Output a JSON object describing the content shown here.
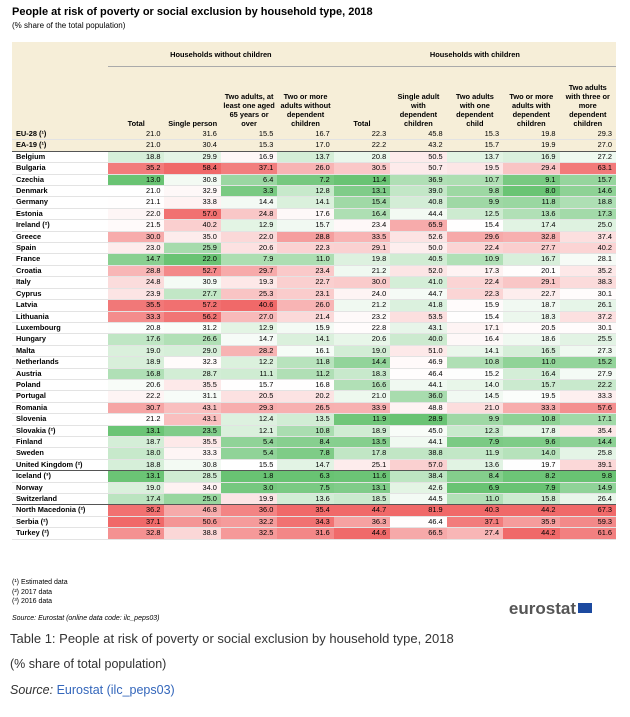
{
  "header": {
    "title": "People at risk of poverty or social exclusion by household type, 2018",
    "subtitle": "(% share of the total population)"
  },
  "table": {
    "groups": [
      "Households without children",
      "Households with children"
    ],
    "columns": [
      "Total",
      "Single person",
      "Two adults, at least one aged 65 years or over",
      "Two or more adults without dependent children",
      "Total",
      "Single adult with dependent children",
      "Two adults with one dependent child",
      "Two or more adults with dependent children",
      "Two adults with three or more dependent children"
    ],
    "rows": [
      {
        "label": "EU-28 (¹)",
        "values": [
          "21.0",
          "31.6",
          "15.5",
          "16.7",
          "22.3",
          "45.8",
          "15.3",
          "19.8",
          "29.3"
        ]
      },
      {
        "label": "EA-19 (¹)",
        "values": [
          "21.0",
          "30.4",
          "15.3",
          "17.0",
          "22.2",
          "43.2",
          "15.7",
          "19.9",
          "27.0"
        ]
      },
      {
        "label": "Belgium",
        "values": [
          "18.8",
          "29.9",
          "16.9",
          "13.7",
          "20.8",
          "50.5",
          "13.7",
          "16.9",
          "27.2"
        ]
      },
      {
        "label": "Bulgaria",
        "values": [
          "35.2",
          "58.4",
          "37.1",
          "26.0",
          "30.5",
          "50.7",
          "19.5",
          "29.4",
          "63.1"
        ]
      },
      {
        "label": "Czechia",
        "values": [
          "13.0",
          "30.8",
          "6.4",
          "7.2",
          "11.4",
          "36.9",
          "10.7",
          "9.1",
          "15.7"
        ]
      },
      {
        "label": "Denmark",
        "values": [
          "21.0",
          "32.9",
          "3.3",
          "12.8",
          "13.1",
          "39.0",
          "9.8",
          "8.0",
          "14.6"
        ]
      },
      {
        "label": "Germany",
        "values": [
          "21.1",
          "33.8",
          "14.4",
          "14.1",
          "15.4",
          "40.8",
          "9.9",
          "11.8",
          "18.8"
        ]
      },
      {
        "label": "Estonia",
        "values": [
          "22.0",
          "57.0",
          "24.8",
          "17.6",
          "16.4",
          "44.4",
          "12.5",
          "13.6",
          "17.3"
        ]
      },
      {
        "label": "Ireland (²)",
        "values": [
          "21.5",
          "40.2",
          "12.9",
          "15.7",
          "23.4",
          "65.9",
          "15.4",
          "17.4",
          "25.0"
        ]
      },
      {
        "label": "Greece",
        "values": [
          "30.0",
          "35.0",
          "22.0",
          "28.8",
          "33.5",
          "52.6",
          "29.6",
          "32.8",
          "37.4"
        ]
      },
      {
        "label": "Spain",
        "values": [
          "23.0",
          "25.9",
          "20.6",
          "22.3",
          "29.1",
          "50.0",
          "22.4",
          "27.7",
          "40.2"
        ]
      },
      {
        "label": "France",
        "values": [
          "14.7",
          "22.0",
          "7.9",
          "11.0",
          "19.8",
          "40.5",
          "10.9",
          "16.7",
          "28.1"
        ]
      },
      {
        "label": "Croatia",
        "values": [
          "28.8",
          "52.7",
          "29.7",
          "23.4",
          "21.2",
          "52.0",
          "17.3",
          "20.1",
          "35.2"
        ]
      },
      {
        "label": "Italy",
        "values": [
          "24.8",
          "30.9",
          "19.3",
          "22.7",
          "30.0",
          "41.0",
          "22.4",
          "29.1",
          "38.3"
        ]
      },
      {
        "label": "Cyprus",
        "values": [
          "23.9",
          "27.7",
          "25.3",
          "23.1",
          "24.0",
          "44.7",
          "22.3",
          "22.7",
          "30.1"
        ]
      },
      {
        "label": "Latvia",
        "values": [
          "35.5",
          "57.2",
          "40.6",
          "26.0",
          "21.2",
          "41.8",
          "15.9",
          "18.7",
          "26.1"
        ]
      },
      {
        "label": "Lithuania",
        "values": [
          "33.3",
          "56.2",
          "27.0",
          "21.4",
          "23.2",
          "53.5",
          "15.4",
          "18.3",
          "37.2"
        ]
      },
      {
        "label": "Luxembourg",
        "values": [
          "20.8",
          "31.2",
          "12.9",
          "15.9",
          "22.8",
          "43.1",
          "17.1",
          "20.5",
          "30.1"
        ]
      },
      {
        "label": "Hungary",
        "values": [
          "17.6",
          "26.6",
          "14.7",
          "14.1",
          "20.6",
          "40.0",
          "16.4",
          "18.6",
          "25.5"
        ]
      },
      {
        "label": "Malta",
        "values": [
          "19.0",
          "29.0",
          "28.2",
          "16.1",
          "19.0",
          "51.0",
          "14.1",
          "16.5",
          "27.3"
        ]
      },
      {
        "label": "Netherlands",
        "values": [
          "18.9",
          "32.3",
          "12.2",
          "11.8",
          "14.4",
          "46.9",
          "10.8",
          "11.0",
          "15.2"
        ]
      },
      {
        "label": "Austria",
        "values": [
          "16.8",
          "28.7",
          "11.1",
          "11.2",
          "18.3",
          "46.4",
          "15.2",
          "16.4",
          "27.9"
        ]
      },
      {
        "label": "Poland",
        "values": [
          "20.6",
          "35.5",
          "15.7",
          "16.8",
          "16.6",
          "44.1",
          "14.0",
          "15.7",
          "22.2"
        ]
      },
      {
        "label": "Portugal",
        "values": [
          "22.2",
          "31.1",
          "20.5",
          "20.2",
          "21.0",
          "36.0",
          "14.5",
          "19.5",
          "33.3"
        ]
      },
      {
        "label": "Romania",
        "values": [
          "30.7",
          "43.1",
          "29.3",
          "26.5",
          "33.9",
          "48.8",
          "21.0",
          "33.3",
          "57.6"
        ]
      },
      {
        "label": "Slovenia",
        "values": [
          "21.2",
          "43.1",
          "12.4",
          "13.5",
          "11.9",
          "28.9",
          "9.9",
          "10.8",
          "17.1"
        ]
      },
      {
        "label": "Slovakia (²)",
        "values": [
          "13.1",
          "23.5",
          "12.1",
          "10.8",
          "18.9",
          "45.0",
          "12.3",
          "17.8",
          "35.4"
        ]
      },
      {
        "label": "Finland",
        "values": [
          "18.7",
          "35.5",
          "5.4",
          "8.4",
          "13.5",
          "44.1",
          "7.9",
          "9.6",
          "14.4"
        ]
      },
      {
        "label": "Sweden",
        "values": [
          "18.0",
          "33.3",
          "5.4",
          "7.8",
          "17.8",
          "38.8",
          "11.9",
          "14.0",
          "25.8"
        ]
      },
      {
        "label": "United Kingdom (²)",
        "values": [
          "18.8",
          "30.8",
          "15.5",
          "14.7",
          "25.1",
          "57.0",
          "13.6",
          "19.7",
          "39.1"
        ]
      },
      {
        "label": "Iceland (³)",
        "values": [
          "13.1",
          "28.5",
          "1.8",
          "6.3",
          "11.6",
          "38.4",
          "8.4",
          "8.2",
          "9.8"
        ]
      },
      {
        "label": "Norway",
        "values": [
          "19.0",
          "34.0",
          "3.0",
          "7.5",
          "13.1",
          "42.6",
          "6.9",
          "7.9",
          "14.9"
        ]
      },
      {
        "label": "Switzerland",
        "values": [
          "17.4",
          "25.0",
          "19.9",
          "13.6",
          "18.5",
          "44.5",
          "11.0",
          "15.8",
          "26.4"
        ]
      },
      {
        "label": "North Macedonia (²)",
        "values": [
          "36.2",
          "46.8",
          "36.0",
          "35.4",
          "44.7",
          "81.9",
          "40.3",
          "44.2",
          "67.3"
        ]
      },
      {
        "label": "Serbia (²)",
        "values": [
          "37.1",
          "50.6",
          "32.2",
          "34.3",
          "36.3",
          "46.4",
          "37.1",
          "35.9",
          "59.3"
        ]
      },
      {
        "label": "Turkey (²)",
        "values": [
          "32.8",
          "38.8",
          "32.5",
          "31.6",
          "44.6",
          "66.5",
          "27.4",
          "44.2",
          "61.6"
        ]
      }
    ]
  },
  "notes": [
    "(¹) Estimated data",
    "(²) 2017 data",
    "(³) 2016 data"
  ],
  "source": "Source: Eurostat (online data code: ilc_peps03)",
  "logo": "eurostat",
  "caption": {
    "title": "Table 1: People at risk of poverty or social exclusion by household type, 2018",
    "subtitle": "(% share of total population)",
    "source_prefix": "Source:",
    "source_text": "Eurostat (ilc_peps03)"
  }
}
